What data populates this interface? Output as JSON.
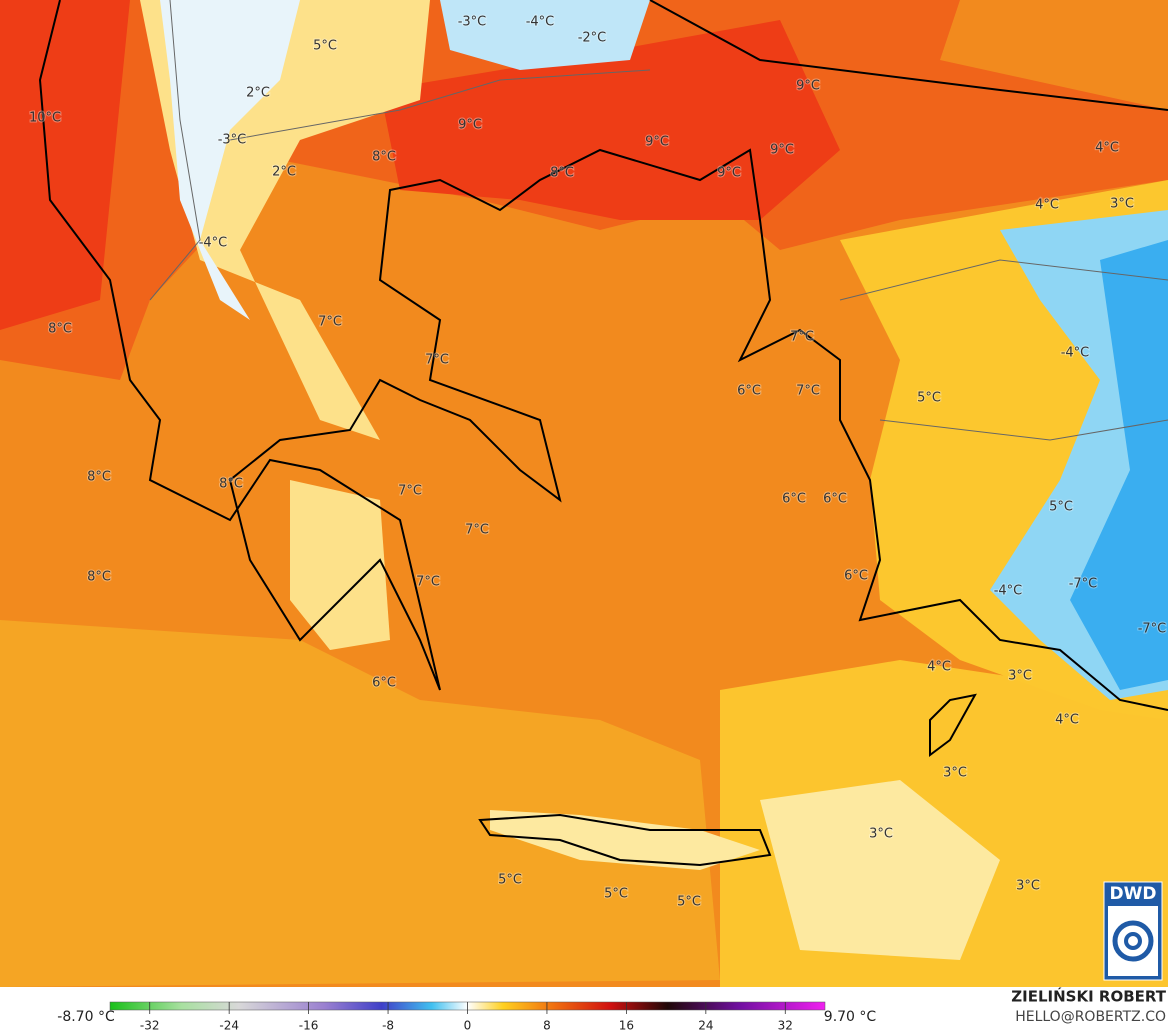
{
  "map": {
    "labels": [
      "-3°C",
      "-4°C",
      "5°C",
      "-2°C",
      "2°C",
      "10°C",
      "9°C",
      "9°C",
      "-3°C",
      "9°C",
      "9°C",
      "8°C",
      "8°C",
      "9°C",
      "2°C",
      "4°C",
      "4°C",
      "3°C",
      "-4°C",
      "8°C",
      "7°C",
      "7°C",
      "-4°C",
      "7°C",
      "6°C",
      "7°C",
      "5°C",
      "8°C",
      "8°C",
      "7°C",
      "6°C",
      "6°C",
      "7°C",
      "5°C",
      "8°C",
      "7°C",
      "6°C",
      "-4°C",
      "-7°C",
      "-7°C",
      "4°C",
      "3°C",
      "6°C",
      "4°C",
      "3°C",
      "3°C",
      "5°C",
      "5°C",
      "5°C",
      "3°C"
    ],
    "logo": "DWD"
  },
  "colorbar": {
    "min_label": "-8.70 °C",
    "max_label": "9.70 °C",
    "range": [
      -36,
      36
    ],
    "ticks": [
      -32,
      -24,
      -16,
      -8,
      0,
      8,
      16,
      24,
      32
    ]
  },
  "credit": {
    "name": "ZIELIŃSKI ROBERT",
    "contact": "HELLO@ROBERTZ.CO"
  }
}
